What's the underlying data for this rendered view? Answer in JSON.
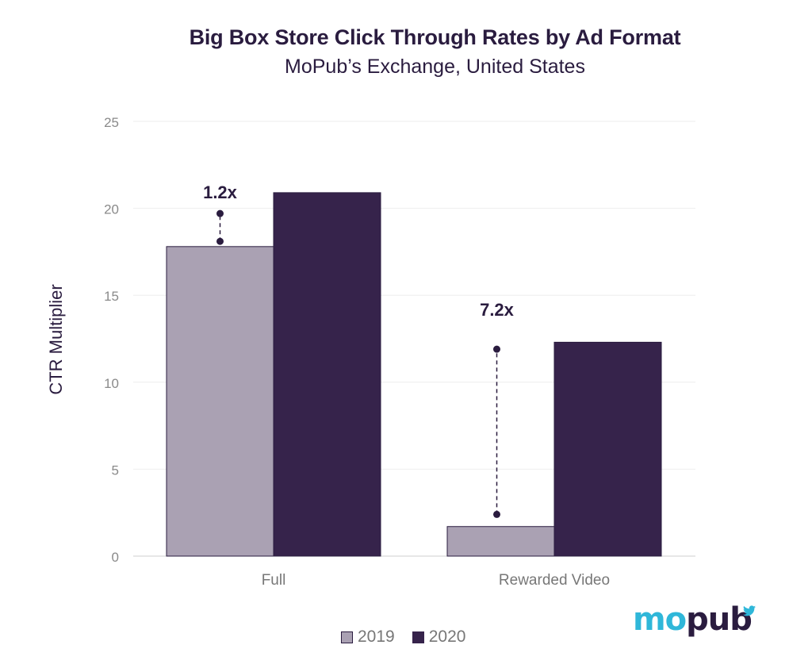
{
  "chart_data": {
    "type": "bar",
    "title": "Big Box Store Click Through Rates by Ad Format",
    "subtitle": "MoPub’s Exchange, United States",
    "xlabel": "",
    "ylabel": "CTR Multiplier",
    "ylim": [
      0,
      25
    ],
    "yticks": [
      0,
      5,
      10,
      15,
      20,
      25
    ],
    "grid": true,
    "legend_position": "bottom-center",
    "categories": [
      "Full",
      "Rewarded Video"
    ],
    "series": [
      {
        "name": "2019",
        "values": [
          17.8,
          1.7
        ],
        "color": "#aaa1b3"
      },
      {
        "name": "2020",
        "values": [
          20.9,
          12.3
        ],
        "color": "#36234b"
      }
    ],
    "annotations": [
      {
        "category": "Full",
        "label": "1.2x",
        "from": 18.1,
        "to": 19.7
      },
      {
        "category": "Rewarded Video",
        "label": "7.2x",
        "from": 2.4,
        "to": 11.9
      }
    ]
  },
  "brand": {
    "mo": "mo",
    "pub": "pub",
    "accent": "#2fb7d9",
    "dark": "#2a1c3f"
  }
}
